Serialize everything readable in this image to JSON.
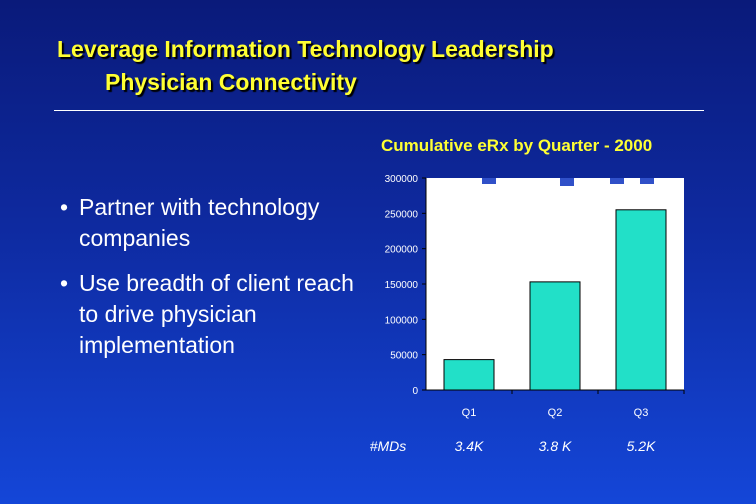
{
  "slide": {
    "title_line1": "Leverage Information Technology Leadership",
    "title_line2": "Physician Connectivity",
    "bullets": [
      "Partner with technology companies",
      "Use breadth of client reach to drive physician implementation"
    ],
    "bullet_marker": "•"
  },
  "chart_data": {
    "type": "bar",
    "title": "Cumulative eRx by Quarter - 2000",
    "categories": [
      "Q1",
      "Q2",
      "Q3"
    ],
    "values": [
      43000,
      153000,
      255000
    ],
    "ylim": [
      0,
      300000
    ],
    "yticks": [
      0,
      50000,
      100000,
      150000,
      200000,
      250000,
      300000
    ],
    "bar_color": "#22e0c8",
    "grid": false,
    "extra_row": {
      "label": "#MDs",
      "values": [
        "3.4K",
        "3.8 K",
        "5.2K"
      ]
    }
  }
}
